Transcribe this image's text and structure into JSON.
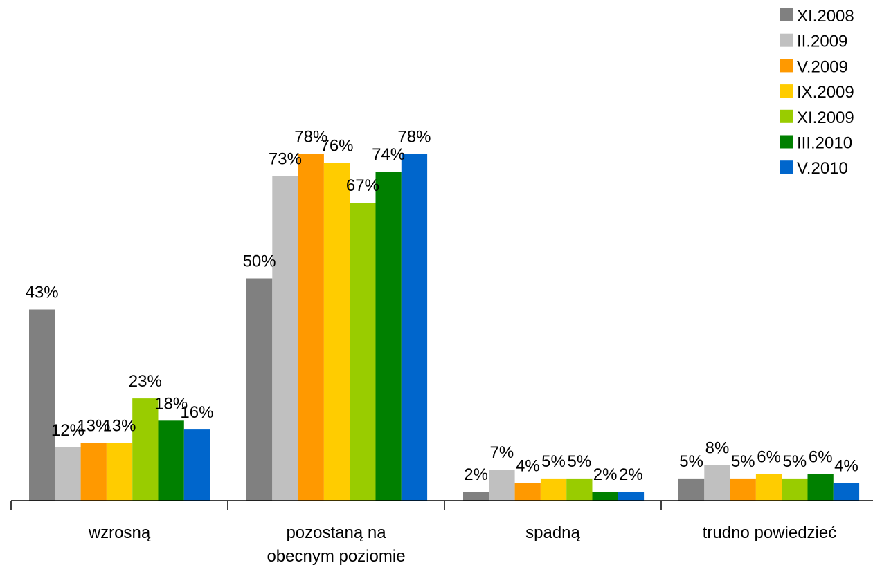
{
  "chart_data": {
    "type": "bar",
    "title": "",
    "xlabel": "",
    "ylabel": "",
    "ylim": [
      0,
      80
    ],
    "grid": false,
    "legend_position": "top-right",
    "categories": [
      "wzrosną",
      "pozostaną na obecnym poziomie",
      "spadną",
      "trudno powiedzieć"
    ],
    "category_label_lines": [
      [
        "wzrosną"
      ],
      [
        "pozostaną na",
        "obecnym poziomie"
      ],
      [
        "spadną"
      ],
      [
        "trudno powiedzieć"
      ]
    ],
    "series": [
      {
        "name": "XI.2008",
        "color": "#808080",
        "values": [
          43,
          50,
          2,
          5
        ],
        "labels": [
          "43%",
          "50%",
          "2%",
          "5%"
        ]
      },
      {
        "name": "II.2009",
        "color": "#c0c0c0",
        "values": [
          12,
          73,
          7,
          8
        ],
        "labels": [
          "12%",
          "73%",
          "7%",
          "8%"
        ]
      },
      {
        "name": "V.2009",
        "color": "#ff9900",
        "values": [
          13,
          78,
          4,
          5
        ],
        "labels": [
          "13%",
          "78%",
          "4%",
          "5%"
        ]
      },
      {
        "name": "IX.2009",
        "color": "#ffcc00",
        "values": [
          13,
          76,
          5,
          6
        ],
        "labels": [
          "13%",
          "76%",
          "5%",
          "6%"
        ]
      },
      {
        "name": "XI.2009",
        "color": "#99cc00",
        "values": [
          23,
          67,
          5,
          5
        ],
        "labels": [
          "23%",
          "67%",
          "5%",
          "5%"
        ]
      },
      {
        "name": "III.2010",
        "color": "#008000",
        "values": [
          18,
          74,
          2,
          6
        ],
        "labels": [
          "18%",
          "74%",
          "2%",
          "6%"
        ]
      },
      {
        "name": "V.2010",
        "color": "#0066cc",
        "values": [
          16,
          78,
          2,
          4
        ],
        "labels": [
          "16%",
          "78%",
          "2%",
          "4%"
        ]
      }
    ]
  }
}
